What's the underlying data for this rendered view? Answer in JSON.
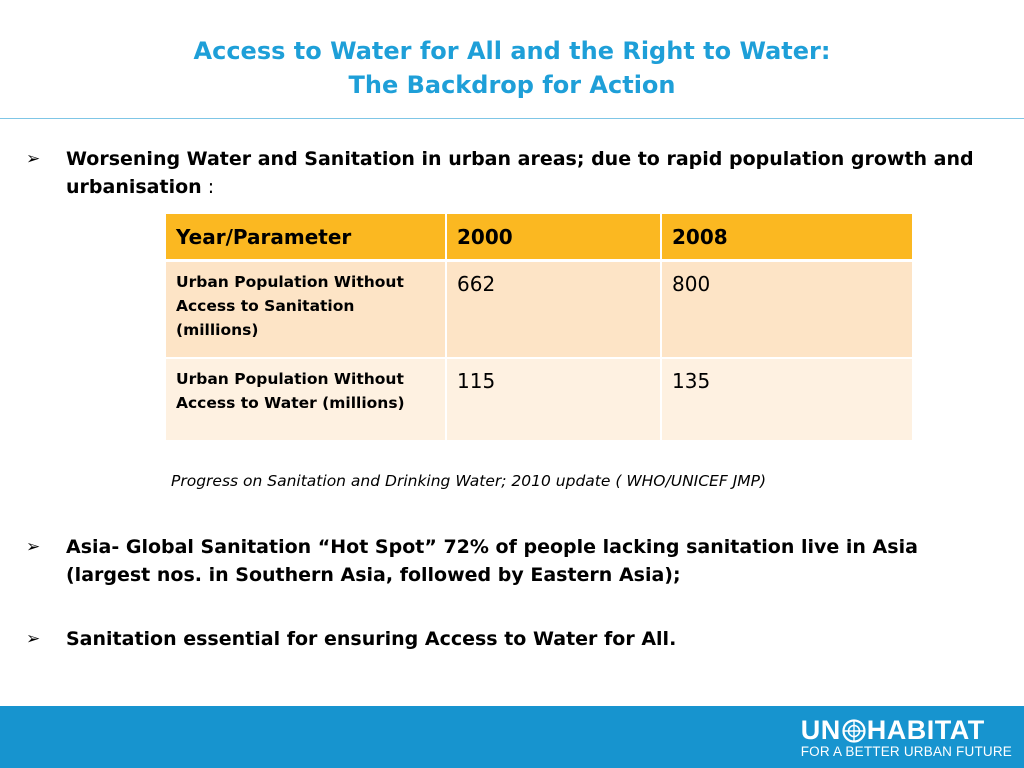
{
  "slide": {
    "title_line1": "Access to Water for All and the Right to Water:",
    "title_line2": "The Backdrop for Action"
  },
  "bullets": [
    {
      "text": "Worsening Water and Sanitation in urban areas; due to rapid population growth and urbanisation",
      "suffix": " :"
    },
    {
      "text": "Asia- Global Sanitation “Hot Spot” 72% of people lacking sanitation live in Asia (largest nos. in Southern Asia, followed by Eastern Asia);"
    },
    {
      "text": "Sanitation essential for ensuring Access to Water for All."
    }
  ],
  "bullet_marker": "➢",
  "table": {
    "headers": [
      "Year/Parameter",
      "2000",
      "2008"
    ],
    "rows": [
      {
        "parameter": "Urban Population Without Access to Sanitation (millions)",
        "values": [
          "662",
          "800"
        ]
      },
      {
        "parameter": "Urban Population Without Access to Water (millions)",
        "values": [
          "115",
          "135"
        ]
      }
    ]
  },
  "source": "Progress on Sanitation and Drinking Water; 2010 update ( WHO/UNICEF JMP)",
  "footer": {
    "logo_left": "UN",
    "logo_right": "HABITAT",
    "tagline": "FOR A BETTER URBAN FUTURE",
    "band_color": "#1794cf"
  },
  "colors": {
    "title": "#1e9fd8",
    "table_header": "#fbb821",
    "row_1": "#fde4c6",
    "row_2": "#fef1e1"
  }
}
